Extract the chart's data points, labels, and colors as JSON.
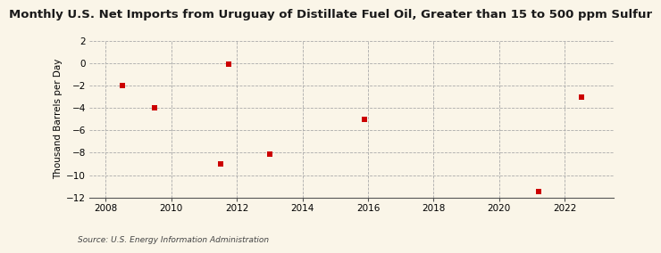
{
  "title": "Monthly U.S. Net Imports from Uruguay of Distillate Fuel Oil, Greater than 15 to 500 ppm Sulfur",
  "ylabel": "Thousand Barrels per Day",
  "source": "Source: U.S. Energy Information Administration",
  "x_data": [
    2008.5,
    2009.5,
    2011.5,
    2011.75,
    2013.0,
    2015.9,
    2021.2,
    2022.5
  ],
  "y_data": [
    -2.0,
    -4.0,
    -9.0,
    -0.1,
    -8.1,
    -5.0,
    -11.5,
    -3.0
  ],
  "xlim": [
    2007.5,
    2023.5
  ],
  "ylim": [
    -12,
    2
  ],
  "yticks": [
    2,
    0,
    -2,
    -4,
    -6,
    -8,
    -10,
    -12
  ],
  "xticks": [
    2008,
    2010,
    2012,
    2014,
    2016,
    2018,
    2020,
    2022
  ],
  "marker_color": "#cc0000",
  "marker_size": 18,
  "background_color": "#faf5e8",
  "grid_color": "#aaaaaa",
  "title_fontsize": 9.5,
  "axis_label_fontsize": 7.5,
  "tick_fontsize": 7.5,
  "source_fontsize": 6.5
}
